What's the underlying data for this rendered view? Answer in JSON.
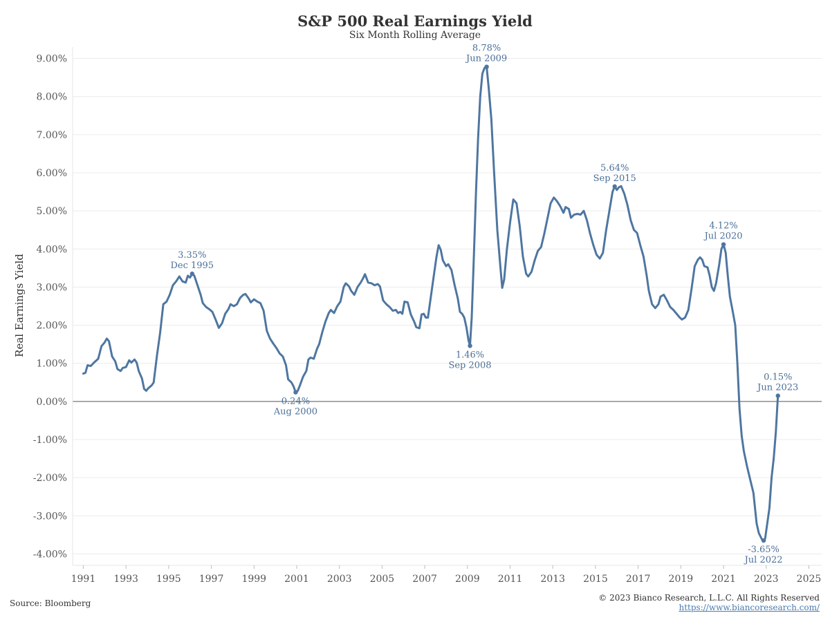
{
  "chart_data": {
    "type": "line",
    "title": "S&P 500 Real Earnings Yield",
    "subtitle": "Six Month Rolling Average",
    "ylabel": "Real Earnings Yield",
    "xlabel": "",
    "xlim": [
      1990.5,
      2025.6
    ],
    "ylim": [
      -4.3,
      9.3
    ],
    "x_ticks": [
      1991,
      1993,
      1995,
      1997,
      1999,
      2001,
      2003,
      2005,
      2007,
      2009,
      2011,
      2013,
      2015,
      2017,
      2019,
      2021,
      2023,
      2025
    ],
    "x_tick_labels": [
      "1991",
      "1993",
      "1995",
      "1997",
      "1999",
      "2001",
      "2003",
      "2005",
      "2007",
      "2009",
      "2011",
      "2013",
      "2015",
      "2017",
      "2019",
      "2021",
      "2023",
      "2025"
    ],
    "y_ticks": [
      -4,
      -3,
      -2,
      -1,
      0,
      1,
      2,
      3,
      4,
      5,
      6,
      7,
      8,
      9
    ],
    "y_tick_labels": [
      "-4.00%",
      "-3.00%",
      "-2.00%",
      "-1.00%",
      "0.00%",
      "1.00%",
      "2.00%",
      "3.00%",
      "4.00%",
      "5.00%",
      "6.00%",
      "7.00%",
      "8.00%",
      "9.00%"
    ],
    "grid": true,
    "line_color": "#4e76a0",
    "series": [
      {
        "points": [
          [
            1991.0,
            0.73
          ],
          [
            1991.1,
            0.75
          ],
          [
            1991.2,
            0.95
          ],
          [
            1991.35,
            0.93
          ],
          [
            1991.5,
            1.02
          ],
          [
            1991.7,
            1.12
          ],
          [
            1991.85,
            1.45
          ],
          [
            1992.0,
            1.55
          ],
          [
            1992.1,
            1.65
          ],
          [
            1992.2,
            1.58
          ],
          [
            1992.35,
            1.18
          ],
          [
            1992.5,
            1.05
          ],
          [
            1992.6,
            0.85
          ],
          [
            1992.75,
            0.8
          ],
          [
            1992.85,
            0.88
          ],
          [
            1993.0,
            0.9
          ],
          [
            1993.15,
            1.08
          ],
          [
            1993.25,
            1.02
          ],
          [
            1993.4,
            1.1
          ],
          [
            1993.5,
            1.02
          ],
          [
            1993.6,
            0.8
          ],
          [
            1993.75,
            0.6
          ],
          [
            1993.85,
            0.33
          ],
          [
            1993.95,
            0.28
          ],
          [
            1994.05,
            0.35
          ],
          [
            1994.2,
            0.42
          ],
          [
            1994.3,
            0.5
          ],
          [
            1994.45,
            1.2
          ],
          [
            1994.6,
            1.8
          ],
          [
            1994.75,
            2.55
          ],
          [
            1994.9,
            2.62
          ],
          [
            1995.05,
            2.8
          ],
          [
            1995.2,
            3.05
          ],
          [
            1995.35,
            3.15
          ],
          [
            1995.5,
            3.28
          ],
          [
            1995.65,
            3.15
          ],
          [
            1995.8,
            3.12
          ],
          [
            1995.9,
            3.3
          ],
          [
            1996.0,
            3.25
          ],
          [
            1996.1,
            3.35
          ],
          [
            1996.2,
            3.3
          ],
          [
            1996.35,
            3.05
          ],
          [
            1996.5,
            2.8
          ],
          [
            1996.6,
            2.58
          ],
          [
            1996.75,
            2.48
          ],
          [
            1996.9,
            2.42
          ],
          [
            1997.05,
            2.35
          ],
          [
            1997.2,
            2.15
          ],
          [
            1997.35,
            1.93
          ],
          [
            1997.5,
            2.05
          ],
          [
            1997.65,
            2.3
          ],
          [
            1997.8,
            2.42
          ],
          [
            1997.9,
            2.55
          ],
          [
            1998.05,
            2.5
          ],
          [
            1998.2,
            2.55
          ],
          [
            1998.35,
            2.72
          ],
          [
            1998.5,
            2.8
          ],
          [
            1998.6,
            2.82
          ],
          [
            1998.75,
            2.7
          ],
          [
            1998.85,
            2.6
          ],
          [
            1999.0,
            2.68
          ],
          [
            1999.15,
            2.62
          ],
          [
            1999.3,
            2.58
          ],
          [
            1999.45,
            2.38
          ],
          [
            1999.6,
            1.85
          ],
          [
            1999.75,
            1.65
          ],
          [
            1999.9,
            1.52
          ],
          [
            2000.05,
            1.4
          ],
          [
            2000.2,
            1.26
          ],
          [
            2000.35,
            1.18
          ],
          [
            2000.5,
            0.95
          ],
          [
            2000.6,
            0.58
          ],
          [
            2000.75,
            0.5
          ],
          [
            2000.85,
            0.4
          ],
          [
            2000.95,
            0.24
          ],
          [
            2001.05,
            0.28
          ],
          [
            2001.15,
            0.42
          ],
          [
            2001.3,
            0.65
          ],
          [
            2001.45,
            0.8
          ],
          [
            2001.55,
            1.1
          ],
          [
            2001.65,
            1.15
          ],
          [
            2001.8,
            1.12
          ],
          [
            2001.95,
            1.38
          ],
          [
            2002.05,
            1.5
          ],
          [
            2002.2,
            1.82
          ],
          [
            2002.35,
            2.1
          ],
          [
            2002.5,
            2.32
          ],
          [
            2002.6,
            2.4
          ],
          [
            2002.75,
            2.32
          ],
          [
            2002.9,
            2.5
          ],
          [
            2003.05,
            2.62
          ],
          [
            2003.2,
            3.0
          ],
          [
            2003.3,
            3.1
          ],
          [
            2003.45,
            3.02
          ],
          [
            2003.55,
            2.9
          ],
          [
            2003.7,
            2.8
          ],
          [
            2003.85,
            3.0
          ],
          [
            2004.0,
            3.12
          ],
          [
            2004.1,
            3.22
          ],
          [
            2004.2,
            3.34
          ],
          [
            2004.35,
            3.12
          ],
          [
            2004.5,
            3.1
          ],
          [
            2004.65,
            3.05
          ],
          [
            2004.8,
            3.08
          ],
          [
            2004.9,
            3.02
          ],
          [
            2005.05,
            2.65
          ],
          [
            2005.2,
            2.55
          ],
          [
            2005.35,
            2.48
          ],
          [
            2005.5,
            2.38
          ],
          [
            2005.65,
            2.4
          ],
          [
            2005.75,
            2.32
          ],
          [
            2005.85,
            2.35
          ],
          [
            2005.95,
            2.3
          ],
          [
            2006.05,
            2.62
          ],
          [
            2006.2,
            2.6
          ],
          [
            2006.35,
            2.28
          ],
          [
            2006.5,
            2.1
          ],
          [
            2006.6,
            1.95
          ],
          [
            2006.75,
            1.92
          ],
          [
            2006.85,
            2.28
          ],
          [
            2006.95,
            2.3
          ],
          [
            2007.05,
            2.2
          ],
          [
            2007.15,
            2.2
          ],
          [
            2007.25,
            2.6
          ],
          [
            2007.4,
            3.2
          ],
          [
            2007.55,
            3.8
          ],
          [
            2007.65,
            4.1
          ],
          [
            2007.75,
            3.98
          ],
          [
            2007.85,
            3.7
          ],
          [
            2008.0,
            3.55
          ],
          [
            2008.1,
            3.6
          ],
          [
            2008.25,
            3.45
          ],
          [
            2008.4,
            3.05
          ],
          [
            2008.55,
            2.7
          ],
          [
            2008.65,
            2.35
          ],
          [
            2008.75,
            2.3
          ],
          [
            2008.85,
            2.2
          ],
          [
            2008.95,
            1.95
          ],
          [
            2009.05,
            1.6
          ],
          [
            2009.12,
            1.46
          ],
          [
            2009.2,
            2.2
          ],
          [
            2009.3,
            3.8
          ],
          [
            2009.4,
            5.5
          ],
          [
            2009.5,
            6.9
          ],
          [
            2009.6,
            8.0
          ],
          [
            2009.7,
            8.6
          ],
          [
            2009.8,
            8.75
          ],
          [
            2009.9,
            8.78
          ],
          [
            2010.0,
            8.2
          ],
          [
            2010.12,
            7.4
          ],
          [
            2010.25,
            6.0
          ],
          [
            2010.4,
            4.5
          ],
          [
            2010.55,
            3.5
          ],
          [
            2010.63,
            2.98
          ],
          [
            2010.72,
            3.2
          ],
          [
            2010.85,
            4.0
          ],
          [
            2011.0,
            4.7
          ],
          [
            2011.15,
            5.3
          ],
          [
            2011.3,
            5.2
          ],
          [
            2011.45,
            4.6
          ],
          [
            2011.6,
            3.8
          ],
          [
            2011.75,
            3.35
          ],
          [
            2011.85,
            3.28
          ],
          [
            2012.0,
            3.4
          ],
          [
            2012.15,
            3.7
          ],
          [
            2012.3,
            3.95
          ],
          [
            2012.45,
            4.05
          ],
          [
            2012.6,
            4.4
          ],
          [
            2012.75,
            4.8
          ],
          [
            2012.9,
            5.2
          ],
          [
            2013.05,
            5.35
          ],
          [
            2013.2,
            5.25
          ],
          [
            2013.35,
            5.12
          ],
          [
            2013.5,
            4.95
          ],
          [
            2013.6,
            5.1
          ],
          [
            2013.75,
            5.05
          ],
          [
            2013.85,
            4.82
          ],
          [
            2014.0,
            4.9
          ],
          [
            2014.15,
            4.92
          ],
          [
            2014.3,
            4.9
          ],
          [
            2014.45,
            5.0
          ],
          [
            2014.6,
            4.75
          ],
          [
            2014.75,
            4.4
          ],
          [
            2014.9,
            4.1
          ],
          [
            2015.05,
            3.85
          ],
          [
            2015.2,
            3.75
          ],
          [
            2015.35,
            3.9
          ],
          [
            2015.5,
            4.5
          ],
          [
            2015.65,
            5.0
          ],
          [
            2015.8,
            5.5
          ],
          [
            2015.9,
            5.64
          ],
          [
            2016.0,
            5.55
          ],
          [
            2016.1,
            5.62
          ],
          [
            2016.2,
            5.65
          ],
          [
            2016.35,
            5.45
          ],
          [
            2016.5,
            5.15
          ],
          [
            2016.65,
            4.75
          ],
          [
            2016.8,
            4.5
          ],
          [
            2016.95,
            4.42
          ],
          [
            2017.1,
            4.1
          ],
          [
            2017.25,
            3.8
          ],
          [
            2017.4,
            3.3
          ],
          [
            2017.5,
            2.9
          ],
          [
            2017.65,
            2.55
          ],
          [
            2017.8,
            2.45
          ],
          [
            2017.95,
            2.55
          ],
          [
            2018.05,
            2.75
          ],
          [
            2018.2,
            2.8
          ],
          [
            2018.35,
            2.65
          ],
          [
            2018.5,
            2.48
          ],
          [
            2018.65,
            2.4
          ],
          [
            2018.8,
            2.3
          ],
          [
            2018.95,
            2.2
          ],
          [
            2019.05,
            2.15
          ],
          [
            2019.2,
            2.2
          ],
          [
            2019.35,
            2.4
          ],
          [
            2019.5,
            2.95
          ],
          [
            2019.65,
            3.55
          ],
          [
            2019.8,
            3.72
          ],
          [
            2019.9,
            3.78
          ],
          [
            2020.0,
            3.72
          ],
          [
            2020.1,
            3.55
          ],
          [
            2020.25,
            3.52
          ],
          [
            2020.35,
            3.3
          ],
          [
            2020.45,
            3.0
          ],
          [
            2020.55,
            2.9
          ],
          [
            2020.65,
            3.1
          ],
          [
            2020.8,
            3.6
          ],
          [
            2020.9,
            4.0
          ],
          [
            2021.0,
            4.12
          ],
          [
            2021.1,
            3.9
          ],
          [
            2021.2,
            3.3
          ],
          [
            2021.3,
            2.75
          ],
          [
            2021.45,
            2.3
          ],
          [
            2021.55,
            2.0
          ],
          [
            2021.65,
            1.0
          ],
          [
            2021.75,
            -0.2
          ],
          [
            2021.85,
            -0.9
          ],
          [
            2021.95,
            -1.3
          ],
          [
            2022.1,
            -1.7
          ],
          [
            2022.25,
            -2.05
          ],
          [
            2022.4,
            -2.4
          ],
          [
            2022.55,
            -3.2
          ],
          [
            2022.65,
            -3.45
          ],
          [
            2022.8,
            -3.62
          ],
          [
            2022.88,
            -3.65
          ],
          [
            2022.95,
            -3.6
          ],
          [
            2023.05,
            -3.2
          ],
          [
            2023.15,
            -2.8
          ],
          [
            2023.25,
            -2.0
          ],
          [
            2023.35,
            -1.5
          ],
          [
            2023.45,
            -0.8
          ],
          [
            2023.55,
            0.15
          ]
        ]
      }
    ],
    "annotations": [
      {
        "x": 1996.1,
        "y": 3.35,
        "value": "3.35%",
        "date": "Dec 1995",
        "pos": "above"
      },
      {
        "x": 2000.95,
        "y": 0.24,
        "value": "0.24%",
        "date": "Aug 2000",
        "pos": "below"
      },
      {
        "x": 2009.12,
        "y": 1.46,
        "value": "1.46%",
        "date": "Sep 2008",
        "pos": "below"
      },
      {
        "x": 2009.9,
        "y": 8.78,
        "value": "8.78%",
        "date": "Jun 2009",
        "pos": "above"
      },
      {
        "x": 2015.9,
        "y": 5.64,
        "value": "5.64%",
        "date": "Sep 2015",
        "pos": "above"
      },
      {
        "x": 2021.0,
        "y": 4.12,
        "value": "4.12%",
        "date": "Jul 2020",
        "pos": "above"
      },
      {
        "x": 2022.88,
        "y": -3.65,
        "value": "-3.65%",
        "date": "Jul 2022",
        "pos": "below"
      },
      {
        "x": 2023.55,
        "y": 0.15,
        "value": "0.15%",
        "date": "Jun 2023",
        "pos": "above"
      }
    ]
  },
  "footer": {
    "source": "Source: Bloomberg",
    "copyright": "© 2023 Bianco Research, L.L.C. All Rights Reserved",
    "url": "https://www.biancoresearch.com/"
  }
}
